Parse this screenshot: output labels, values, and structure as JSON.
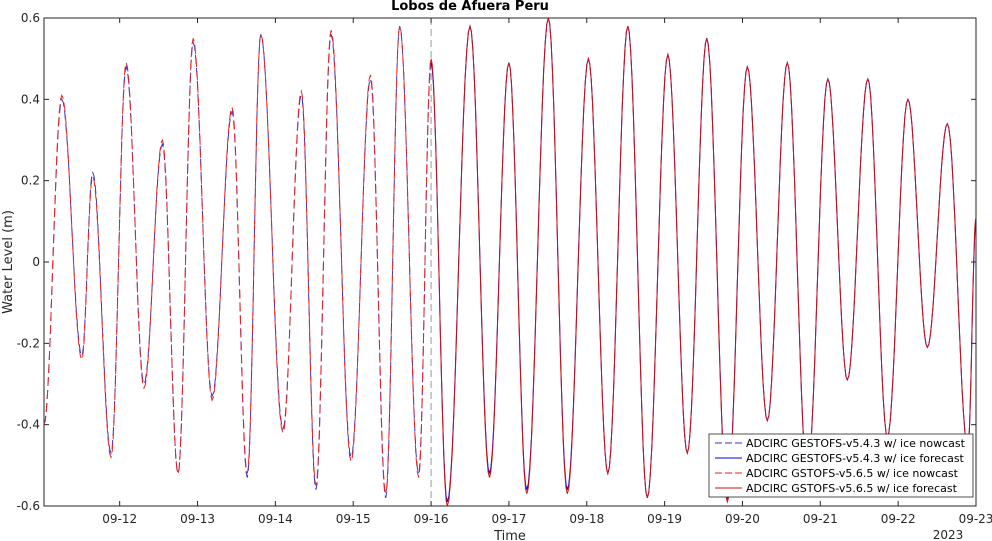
{
  "chart_data": {
    "type": "line",
    "title": "Lobos de Afuera Peru",
    "xlabel": "Time",
    "ylabel": "Water Level (m)",
    "xlim": [
      "2023-09-11 00:40",
      "2023-09-23 00:00"
    ],
    "ylim": [
      -0.6,
      0.6
    ],
    "x_ticks": [
      "09-12",
      "09-13",
      "09-14",
      "09-15",
      "09-16",
      "09-17",
      "09-18",
      "09-19",
      "09-20",
      "09-21",
      "09-22",
      "09-23"
    ],
    "x_tick_year": "2023",
    "y_ticks": [
      "-0.6",
      "-0.4",
      "-0.2",
      "0",
      "0.2",
      "0.4",
      "0.6"
    ],
    "grid": false,
    "legend_position": "bottom-right",
    "nowcast_forecast_split": "2023-09-16 00:00",
    "series": [
      {
        "name": "ADCIRC GESTOFS-v5.4.3 w/ ice nowcast",
        "color": "#3333cc",
        "style": "dashed",
        "x": [
          "09-11 00:40",
          "09-11 06:10",
          "09-11 12:20",
          "09-11 15:40",
          "09-11 21:20",
          "09-12 02:00",
          "09-12 07:30",
          "09-12 13:10",
          "09-12 18:00",
          "09-12 22:40",
          "09-13 04:30",
          "09-13 10:40",
          "09-13 15:20",
          "09-13 19:30",
          "09-14 02:20",
          "09-14 08:00",
          "09-14 12:30",
          "09-14 17:10",
          "09-14 23:20",
          "09-15 05:20",
          "09-15 10:00",
          "09-15 14:20",
          "09-15 20:10",
          "09-16 00:00"
        ],
        "y": [
          -0.4,
          0.4,
          -0.23,
          0.22,
          -0.47,
          0.48,
          -0.3,
          0.29,
          -0.52,
          0.54,
          -0.33,
          0.37,
          -0.53,
          0.56,
          -0.41,
          0.41,
          -0.56,
          0.56,
          -0.48,
          0.45,
          -0.58,
          0.58,
          -0.52,
          0.49
        ]
      },
      {
        "name": "ADCIRC GESTOFS-v5.4.3 w/ ice forecast",
        "color": "#0000ee",
        "style": "solid",
        "x": [
          "09-16 00:00",
          "09-16 05:00",
          "09-16 12:00",
          "09-16 18:00",
          "09-17 00:00",
          "09-17 05:30",
          "09-17 12:10",
          "09-17 18:00",
          "09-18 00:30",
          "09-18 06:30",
          "09-18 12:40",
          "09-18 18:40",
          "09-19 01:00",
          "09-19 07:00",
          "09-19 13:00",
          "09-19 19:20",
          "09-20 01:30",
          "09-20 07:40",
          "09-20 13:50",
          "09-20 20:00",
          "09-21 02:20",
          "09-21 08:20",
          "09-21 14:40",
          "09-21 20:40",
          "09-22 03:00",
          "09-22 09:00",
          "09-22 15:10",
          "09-22 21:30",
          "09-23 00:00"
        ],
        "y": [
          0.49,
          -0.59,
          0.58,
          -0.52,
          0.49,
          -0.56,
          0.6,
          -0.56,
          0.5,
          -0.52,
          0.58,
          -0.58,
          0.51,
          -0.47,
          0.55,
          -0.58,
          0.48,
          -0.39,
          0.49,
          -0.52,
          0.45,
          -0.29,
          0.45,
          -0.43,
          0.4,
          -0.21,
          0.34,
          -0.46,
          0.1
        ]
      },
      {
        "name": "ADCIRC GSTOFS-v5.6.5 w/ ice nowcast",
        "color": "#ee2222",
        "style": "dashed",
        "x": [
          "09-11 00:40",
          "09-11 06:10",
          "09-11 12:20",
          "09-11 15:40",
          "09-11 21:20",
          "09-12 02:00",
          "09-12 07:30",
          "09-12 13:10",
          "09-12 18:00",
          "09-12 22:40",
          "09-13 04:30",
          "09-13 10:40",
          "09-13 15:20",
          "09-13 19:30",
          "09-14 02:20",
          "09-14 08:00",
          "09-14 12:30",
          "09-14 17:10",
          "09-14 23:20",
          "09-15 05:20",
          "09-15 10:00",
          "09-15 14:20",
          "09-15 20:10",
          "09-16 00:00"
        ],
        "y": [
          -0.4,
          0.41,
          -0.24,
          0.21,
          -0.48,
          0.49,
          -0.31,
          0.3,
          -0.52,
          0.55,
          -0.34,
          0.38,
          -0.52,
          0.56,
          -0.42,
          0.42,
          -0.55,
          0.57,
          -0.49,
          0.46,
          -0.57,
          0.58,
          -0.53,
          0.5
        ]
      },
      {
        "name": "ADCIRC GSTOFS-v5.6.5 w/ ice forecast",
        "color": "#cc1111",
        "style": "solid",
        "x": [
          "09-16 00:00",
          "09-16 05:00",
          "09-16 12:00",
          "09-16 18:00",
          "09-17 00:00",
          "09-17 05:30",
          "09-17 12:10",
          "09-17 18:00",
          "09-18 00:30",
          "09-18 06:30",
          "09-18 12:40",
          "09-18 18:40",
          "09-19 01:00",
          "09-19 07:00",
          "09-19 13:00",
          "09-19 19:20",
          "09-20 01:30",
          "09-20 07:40",
          "09-20 13:50",
          "09-20 20:00",
          "09-21 02:20",
          "09-21 08:20",
          "09-21 14:40",
          "09-21 20:40",
          "09-22 03:00",
          "09-22 09:00",
          "09-22 15:10",
          "09-22 21:30",
          "09-23 00:00"
        ],
        "y": [
          0.5,
          -0.6,
          0.58,
          -0.53,
          0.49,
          -0.57,
          0.6,
          -0.57,
          0.5,
          -0.52,
          0.58,
          -0.58,
          0.51,
          -0.47,
          0.55,
          -0.59,
          0.48,
          -0.39,
          0.49,
          -0.52,
          0.45,
          -0.29,
          0.45,
          -0.43,
          0.4,
          -0.21,
          0.34,
          -0.46,
          0.11
        ]
      }
    ]
  }
}
